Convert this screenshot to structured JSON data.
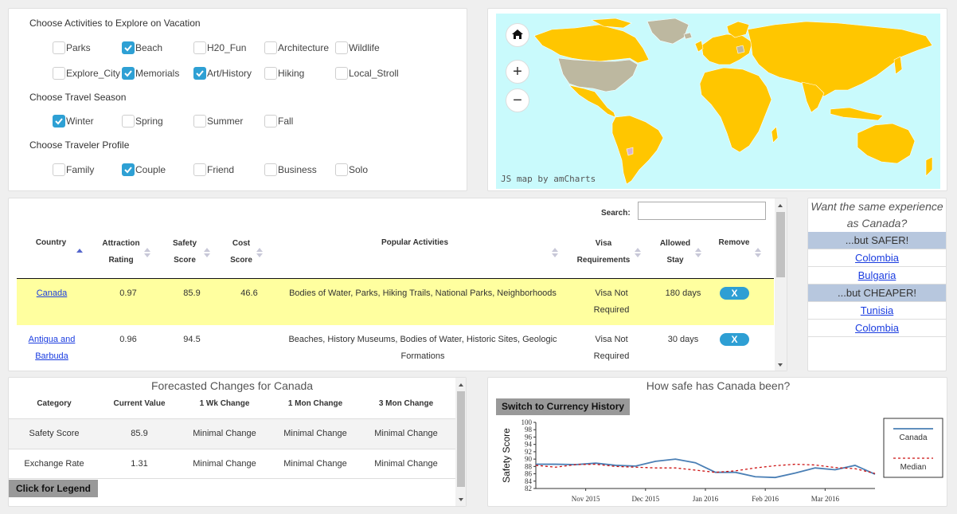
{
  "activities": {
    "title": "Choose Activities to Explore on Vacation",
    "items": [
      {
        "label": "Parks",
        "checked": false
      },
      {
        "label": "Beach",
        "checked": true
      },
      {
        "label": "H20_Fun",
        "checked": false
      },
      {
        "label": "Architecture",
        "checked": false
      },
      {
        "label": "Wildlife",
        "checked": false
      },
      {
        "label": "Explore_City",
        "checked": false
      },
      {
        "label": "Memorials",
        "checked": true
      },
      {
        "label": "Art/History",
        "checked": true
      },
      {
        "label": "Hiking",
        "checked": false
      },
      {
        "label": "Local_Stroll",
        "checked": false
      }
    ]
  },
  "season": {
    "title": "Choose Travel Season",
    "items": [
      {
        "label": "Winter",
        "checked": true
      },
      {
        "label": "Spring",
        "checked": false
      },
      {
        "label": "Summer",
        "checked": false
      },
      {
        "label": "Fall",
        "checked": false
      }
    ]
  },
  "profile": {
    "title": "Choose Traveler Profile",
    "items": [
      {
        "label": "Family",
        "checked": false
      },
      {
        "label": "Couple",
        "checked": true
      },
      {
        "label": "Friend",
        "checked": false
      },
      {
        "label": "Business",
        "checked": false
      },
      {
        "label": "Solo",
        "checked": false
      }
    ]
  },
  "map": {
    "credit": "JS map by amCharts",
    "home_icon": "home-icon",
    "zoom_in": "+",
    "zoom_out": "−",
    "colors": {
      "ocean": "#c9fafc",
      "highlight": "#ffc600",
      "other": "#bdb8a0"
    }
  },
  "table": {
    "search_label": "Search:",
    "search_value": "",
    "headers": {
      "country": "Country",
      "attraction1": "Attraction",
      "attraction2": "Rating",
      "safety1": "Safety",
      "safety2": "Score",
      "cost1": "Cost",
      "cost2": "Score",
      "activities": "Popular Activities",
      "visa1": "Visa",
      "visa2": "Requirements",
      "stay1": "Allowed",
      "stay2": "Stay",
      "remove": "Remove"
    },
    "rows": [
      {
        "country": "Canada",
        "attraction": "0.97",
        "safety": "85.9",
        "cost": "46.6",
        "activities1": "Bodies of Water, Parks, Hiking Trails, National Parks, Neighborhoods",
        "activities2": "",
        "visa1": "Visa Not",
        "visa2": "Required",
        "stay": "180 days",
        "remove": "X",
        "highlight": true
      },
      {
        "country1": "Antigua and",
        "country2": "Barbuda",
        "attraction": "0.96",
        "safety": "94.5",
        "cost": "",
        "activities1": "Beaches, History Museums, Bodies of Water, Historic Sites, Geologic",
        "activities2": "Formations",
        "visa1": "Visa Not",
        "visa2": "Required",
        "stay": "30 days",
        "remove": "X",
        "highlight": false
      }
    ]
  },
  "similar": {
    "question1": "Want the same experience",
    "question2": "as Canada?",
    "safer_label": "...but SAFER!",
    "safer": [
      "Colombia",
      "Bulgaria"
    ],
    "cheaper_label": "...but CHEAPER!",
    "cheaper": [
      "Tunisia",
      "Colombia"
    ]
  },
  "forecast": {
    "title": "Forecasted Changes for Canada",
    "headers": [
      "Category",
      "Current Value",
      "1 Wk Change",
      "1 Mon Change",
      "3 Mon Change"
    ],
    "rows": [
      [
        "Safety Score",
        "85.9",
        "Minimal Change",
        "Minimal Change",
        "Minimal Change"
      ],
      [
        "Exchange Rate",
        "1.31",
        "Minimal Change",
        "Minimal Change",
        "Minimal Change"
      ]
    ],
    "legend_button": "Click for Legend"
  },
  "safety_panel": {
    "title": "How safe has Canada been?",
    "switch_button": "Switch to Currency History"
  },
  "chart_data": {
    "type": "line",
    "ylabel": "Safety Score",
    "ylim": [
      82,
      100
    ],
    "yticks": [
      82,
      84,
      86,
      88,
      90,
      92,
      94,
      96,
      98,
      100
    ],
    "xlabels": [
      "Nov 2015",
      "Dec 2015",
      "Jan 2016",
      "Feb 2016",
      "Mar 2016"
    ],
    "xlabel_positions": [
      2.5,
      5.5,
      8.5,
      11.5,
      14.5
    ],
    "x": [
      0,
      1,
      2,
      3,
      4,
      5,
      6,
      7,
      8,
      9,
      10,
      11,
      12,
      13,
      14,
      15,
      16,
      17
    ],
    "series": [
      {
        "name": "Canada",
        "color": "#4a7fb5",
        "dash": false,
        "values": [
          88.6,
          88.6,
          88.5,
          88.9,
          88.3,
          88.1,
          89.4,
          90.0,
          89.0,
          86.4,
          86.4,
          85.2,
          85.0,
          86.2,
          87.6,
          87.1,
          88.3,
          85.9
        ]
      },
      {
        "name": "Median",
        "color": "#cc1111",
        "dash": true,
        "values": [
          88.3,
          87.8,
          88.5,
          88.6,
          88.0,
          87.8,
          87.6,
          87.6,
          87.0,
          86.4,
          86.8,
          87.6,
          88.2,
          88.6,
          88.4,
          87.7,
          87.4,
          86.1
        ]
      }
    ],
    "legend_position": "right"
  }
}
